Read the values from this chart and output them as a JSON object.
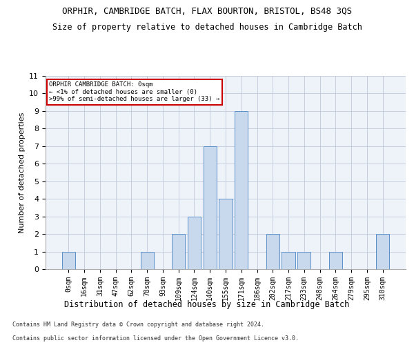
{
  "title": "ORPHIR, CAMBRIDGE BATCH, FLAX BOURTON, BRISTOL, BS48 3QS",
  "subtitle": "Size of property relative to detached houses in Cambridge Batch",
  "xlabel": "Distribution of detached houses by size in Cambridge Batch",
  "ylabel": "Number of detached properties",
  "bar_color": "#c9d9ed",
  "bar_edge_color": "#5b8fc9",
  "background_color": "#eef2f9",
  "categories": [
    "0sqm",
    "16sqm",
    "31sqm",
    "47sqm",
    "62sqm",
    "78sqm",
    "93sqm",
    "109sqm",
    "124sqm",
    "140sqm",
    "155sqm",
    "171sqm",
    "186sqm",
    "202sqm",
    "217sqm",
    "233sqm",
    "248sqm",
    "264sqm",
    "279sqm",
    "295sqm",
    "310sqm"
  ],
  "values": [
    1,
    0,
    0,
    0,
    0,
    1,
    0,
    2,
    3,
    7,
    4,
    9,
    0,
    2,
    1,
    1,
    0,
    1,
    0,
    0,
    2
  ],
  "ylim": [
    0,
    11
  ],
  "yticks": [
    0,
    1,
    2,
    3,
    4,
    5,
    6,
    7,
    8,
    9,
    10,
    11
  ],
  "annotation_text": "ORPHIR CAMBRIDGE BATCH: 0sqm\n← <1% of detached houses are smaller (0)\n>99% of semi-detached houses are larger (33) →",
  "footer_line1": "Contains HM Land Registry data © Crown copyright and database right 2024.",
  "footer_line2": "Contains public sector information licensed under the Open Government Licence v3.0.",
  "grid_color": "#c0c8d8",
  "title_fontsize": 9,
  "subtitle_fontsize": 8.5,
  "axis_fontsize": 8,
  "tick_fontsize": 7,
  "annotation_box_color": "#ffffff",
  "annotation_box_edge": "#cc0000",
  "footer_fontsize": 6
}
